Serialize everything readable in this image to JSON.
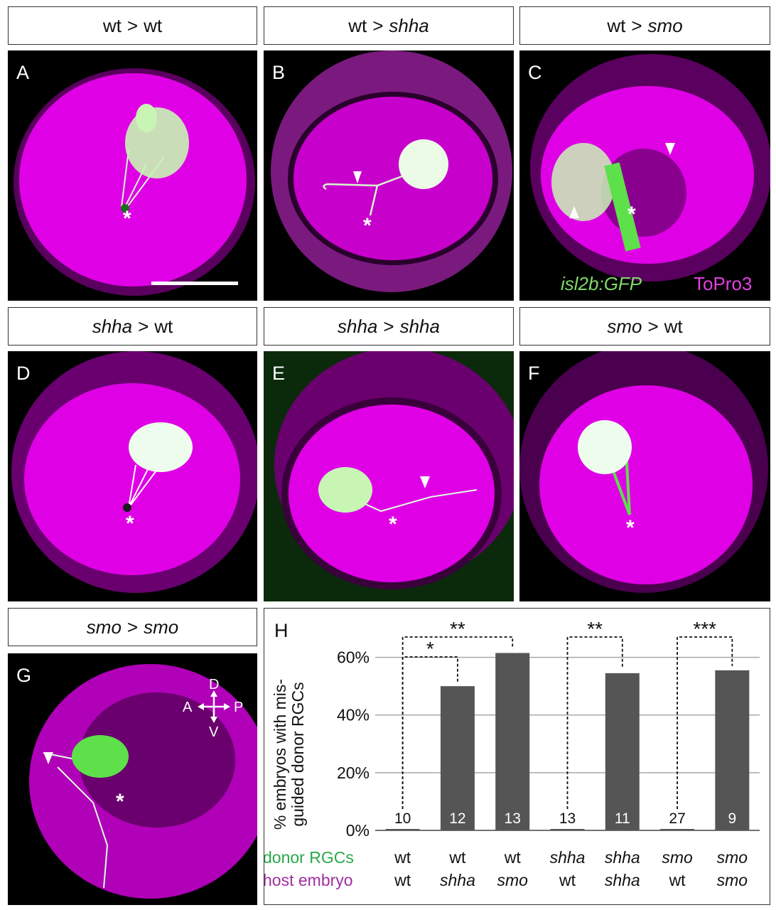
{
  "panels": [
    {
      "letter": "A",
      "label_left": "wt",
      "label_right": "wt",
      "left_italic": false,
      "right_italic": false
    },
    {
      "letter": "B",
      "label_left": "wt",
      "label_right": "shha",
      "left_italic": false,
      "right_italic": true
    },
    {
      "letter": "C",
      "label_left": "wt",
      "label_right": "smo",
      "left_italic": false,
      "right_italic": true
    },
    {
      "letter": "D",
      "label_left": "shha",
      "label_right": "wt",
      "left_italic": true,
      "right_italic": false
    },
    {
      "letter": "E",
      "label_left": "shha",
      "label_right": "shha",
      "left_italic": true,
      "right_italic": true
    },
    {
      "letter": "F",
      "label_left": "smo",
      "label_right": "wt",
      "left_italic": true,
      "right_italic": false
    },
    {
      "letter": "G",
      "label_left": "smo",
      "label_right": "smo",
      "left_italic": true,
      "right_italic": true
    }
  ],
  "separator": ">",
  "legend": {
    "green_label": "isl2b:GFP",
    "magenta_label": "ToPro3",
    "green_color": "#7fd96a",
    "magenta_color": "#e040e0"
  },
  "compass": {
    "up": "D",
    "down": "V",
    "left": "A",
    "right": "P"
  },
  "asterisk": "*",
  "colors": {
    "tissue": "#e000e6",
    "tissue_dark": "#5a005e",
    "cells": "#c8f5b4",
    "gfp": "#5ee04a",
    "bar": "#555555"
  },
  "chart_data": {
    "type": "bar",
    "panel_letter": "H",
    "ylabel_line1": "% embryos with mis-",
    "ylabel_line2": "guided donor RGCs",
    "yticks": [
      "0%",
      "20%",
      "40%",
      "60%"
    ],
    "ylim": [
      0,
      70
    ],
    "grid": true,
    "row_labels": {
      "donor": "donor RGCs",
      "host": "host embryo",
      "donor_color": "#2aa84a",
      "host_color": "#a02fa0"
    },
    "categories": [
      {
        "donor": "wt",
        "host": "wt",
        "donor_italic": false,
        "host_italic": false
      },
      {
        "donor": "wt",
        "host": "shha",
        "donor_italic": false,
        "host_italic": true
      },
      {
        "donor": "wt",
        "host": "smo",
        "donor_italic": false,
        "host_italic": true
      },
      {
        "donor": "shha",
        "host": "wt",
        "donor_italic": true,
        "host_italic": false
      },
      {
        "donor": "shha",
        "host": "shha",
        "donor_italic": true,
        "host_italic": true
      },
      {
        "donor": "smo",
        "host": "wt",
        "donor_italic": true,
        "host_italic": false
      },
      {
        "donor": "smo",
        "host": "smo",
        "donor_italic": true,
        "host_italic": true
      }
    ],
    "values": [
      0,
      50,
      61.5,
      0,
      54.5,
      0,
      55.5
    ],
    "n": [
      "10",
      "12",
      "13",
      "13",
      "11",
      "27",
      "9"
    ],
    "significance": [
      {
        "from": 0,
        "to": 1,
        "label": "*"
      },
      {
        "from": 0,
        "to": 2,
        "label": "**"
      },
      {
        "from": 3,
        "to": 4,
        "label": "**"
      },
      {
        "from": 5,
        "to": 6,
        "label": "***"
      }
    ]
  }
}
